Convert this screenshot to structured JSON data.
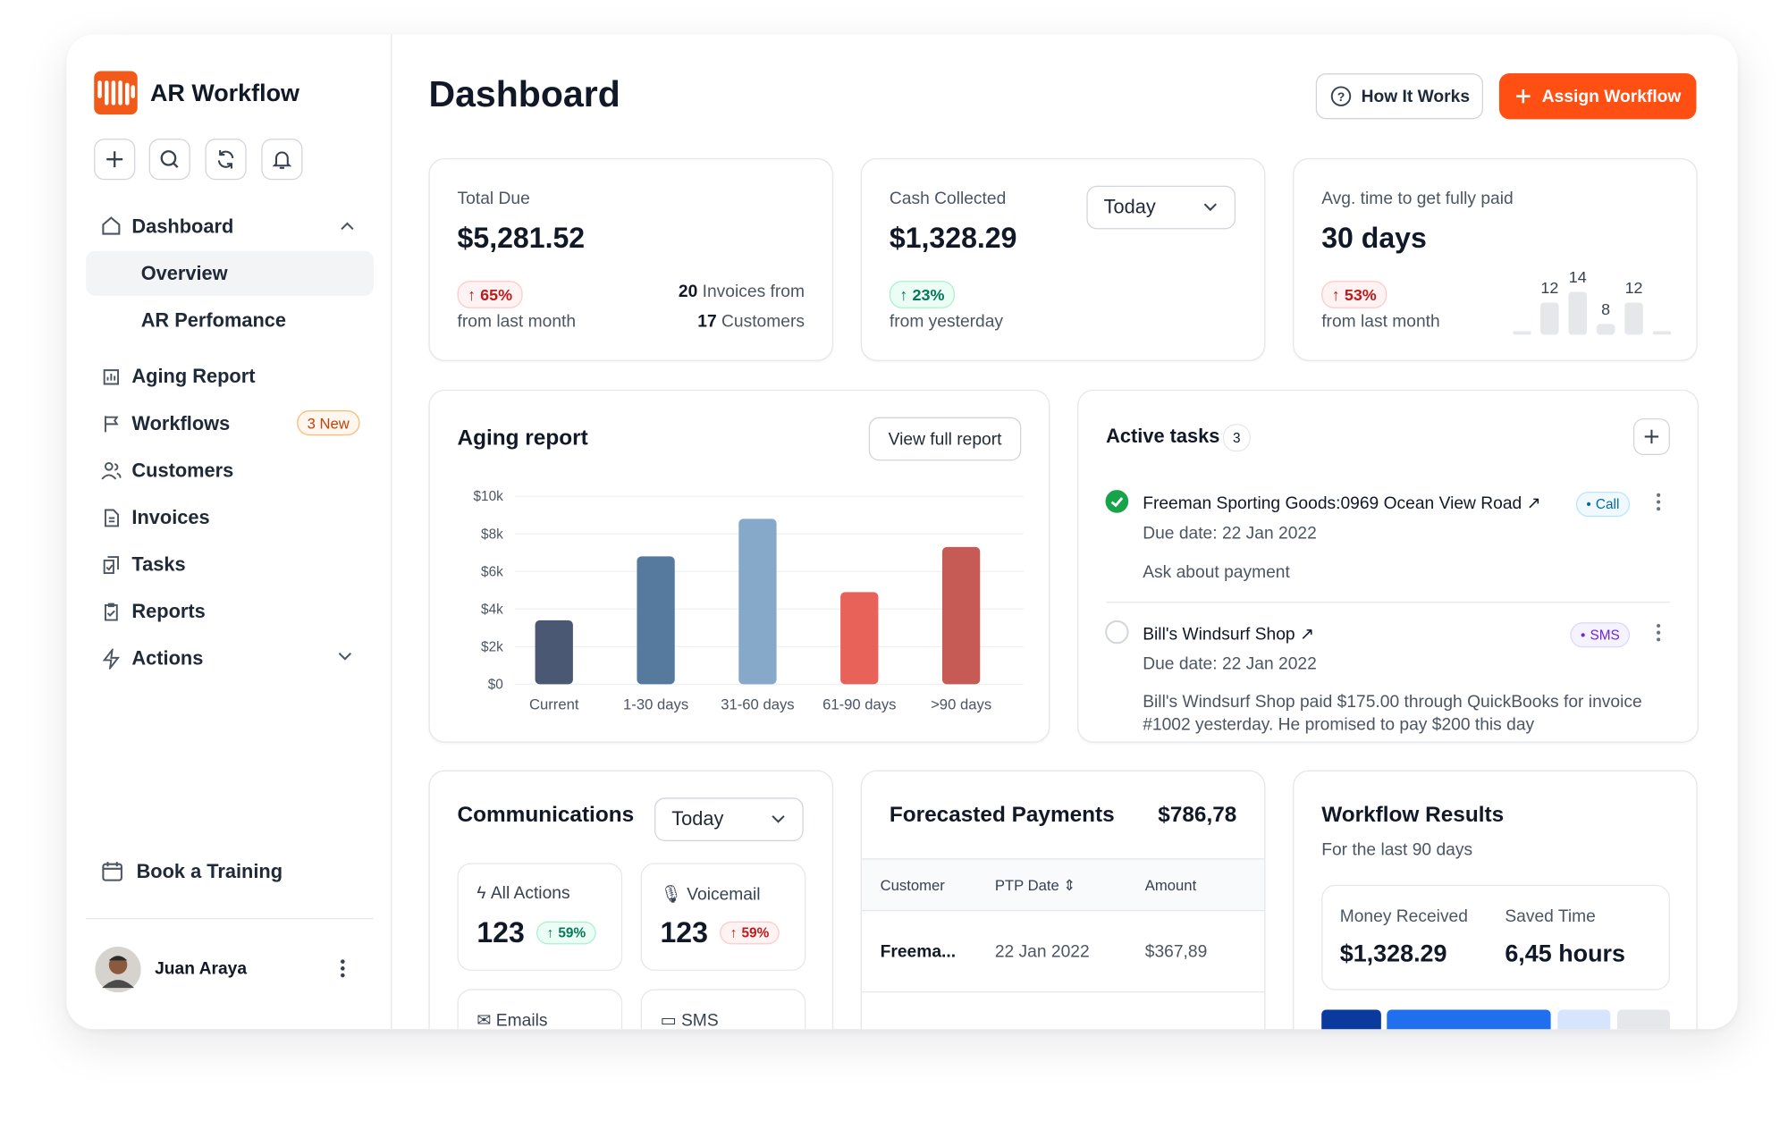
{
  "sidebar": {
    "brand": "AR Workflow",
    "nav": [
      {
        "label": "Dashboard",
        "children": [
          "Overview",
          "AR Perfomance"
        ]
      },
      {
        "label": "Aging Report"
      },
      {
        "label": "Workflows",
        "badge": "3 New"
      },
      {
        "label": "Customers"
      },
      {
        "label": "Invoices"
      },
      {
        "label": "Tasks"
      },
      {
        "label": "Reports"
      },
      {
        "label": "Actions"
      }
    ],
    "training": "Book a Training",
    "user": "Juan Araya"
  },
  "header": {
    "title": "Dashboard",
    "buttons": [
      "How It Works",
      "Assign Workflow"
    ]
  },
  "stats": [
    {
      "label": "Total Due",
      "value": "$5,281.52",
      "change": "65%",
      "change_note": "from last month",
      "invoices_count": "20",
      "invoices_text": "Invoices from",
      "customers_count": "17",
      "customers_text": "Customers"
    },
    {
      "label": "Cash Collected",
      "value": "$1,328.29",
      "period": "Today",
      "change": "23%",
      "change_note": "from yesterday"
    },
    {
      "label": "Avg. time to get fully paid",
      "value": "30 days",
      "change": "53%",
      "change_note": "from last month"
    }
  ],
  "aging_report": {
    "button": "View full report"
  },
  "chart_data": [
    {
      "type": "bar",
      "title": "Aging report",
      "categories": [
        "Current",
        "1-30 days",
        "31-60 days",
        "61-90 days",
        ">90 days"
      ],
      "values": [
        3400,
        6800,
        8800,
        4900,
        7300
      ],
      "colors": [
        "#4b5873",
        "#557a9e",
        "#86a8c9",
        "#e8625a",
        "#c65a55"
      ],
      "ylim": [
        0,
        10000
      ],
      "yticks": [
        {
          "value": 0,
          "label": "$0"
        },
        {
          "value": 2000,
          "label": "$2k"
        },
        {
          "value": 4000,
          "label": "$4k"
        },
        {
          "value": 6000,
          "label": "$6k"
        },
        {
          "value": 8000,
          "label": "$8k"
        },
        {
          "value": 10000,
          "label": "$10k"
        }
      ],
      "grid": true
    },
    {
      "type": "bar",
      "values": [
        12,
        14,
        8,
        12
      ],
      "ylim": [
        6,
        15
      ],
      "color": "#e5e7eb"
    }
  ],
  "tasks": {
    "title": "Active tasks",
    "count": "3",
    "items": [
      {
        "title": "Freeman Sporting Goods:0969 Ocean View Road",
        "tag": "Call",
        "due": "Due date: 22 Jan 2022",
        "note": "Ask about payment"
      },
      {
        "title": "Bill's Windsurf Shop",
        "tag": "SMS",
        "due": "Due date: 22 Jan 2022",
        "note": "Bill's Windsurf Shop paid $175.00 through QuickBooks for invoice #1002 yesterday. He promised to pay $200 this day"
      }
    ]
  },
  "communications": {
    "title": "Communications",
    "period": "Today",
    "tiles": [
      {
        "label": "All Actions",
        "value": "123",
        "change": "59%"
      },
      {
        "label": "Voicemail",
        "value": "123",
        "change": "59%"
      },
      {
        "label": "Emails"
      },
      {
        "label": "SMS"
      }
    ]
  },
  "forecast": {
    "title": "Forecasted Payments",
    "total": "$786,78",
    "columns": [
      "Customer",
      "PTP Date",
      "Amount"
    ],
    "rows": [
      [
        "Freema...",
        "22 Jan 2022",
        "$367,89"
      ]
    ]
  },
  "workflow": {
    "title": "Workflow Results",
    "subtitle": "For the last 90 days",
    "metrics": [
      {
        "label": "Money Received",
        "value": "$1,328.29"
      },
      {
        "label": "Saved Time",
        "value": "6,45 hours"
      }
    ]
  }
}
